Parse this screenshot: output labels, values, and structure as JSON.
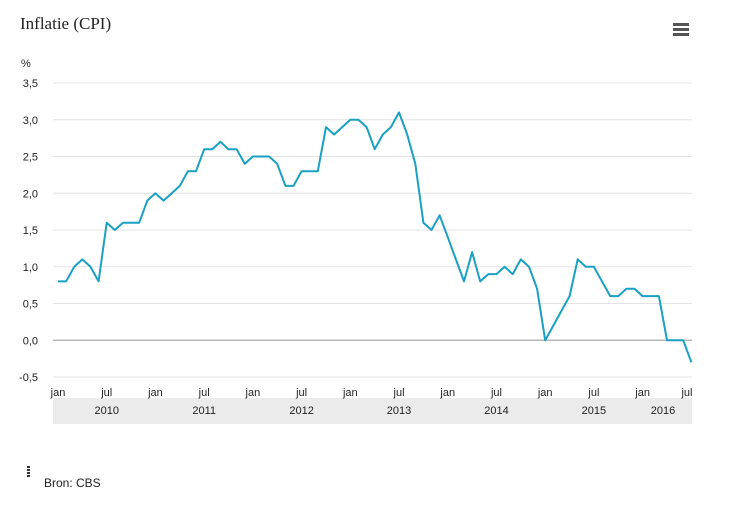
{
  "title": "Inflatie (CPI)",
  "source": "Bron: CBS",
  "icons": {
    "menu": "hamburger-menu-icon",
    "info": "info-icon"
  },
  "colors": {
    "line": "#1aa0c2",
    "band": "#ebebeb",
    "zero": "#aaaaaa",
    "grid": "#e3e3e3"
  },
  "chart_data": {
    "type": "line",
    "title": "Inflatie (CPI)",
    "ylabel": "%",
    "ylim": [
      -0.5,
      3.5
    ],
    "yticks": [
      "3,5",
      "3,0",
      "2,5",
      "2,0",
      "1,5",
      "1,0",
      "0,5",
      "0,0",
      "-0,5"
    ],
    "ytick_values": [
      3.5,
      3.0,
      2.5,
      2.0,
      1.5,
      1.0,
      0.5,
      0.0,
      -0.5
    ],
    "grid": true,
    "x_month_ticks": [
      "jan",
      "jul",
      "jan",
      "jul",
      "jan",
      "jul",
      "jan",
      "jul",
      "jan",
      "jul",
      "jan",
      "jul",
      "jan",
      "jul"
    ],
    "x_year_labels": [
      "2010",
      "2011",
      "2012",
      "2013",
      "2014",
      "2015",
      "2016"
    ],
    "x": [
      "2010-01",
      "2010-02",
      "2010-03",
      "2010-04",
      "2010-05",
      "2010-06",
      "2010-07",
      "2010-08",
      "2010-09",
      "2010-10",
      "2010-11",
      "2010-12",
      "2011-01",
      "2011-02",
      "2011-03",
      "2011-04",
      "2011-05",
      "2011-06",
      "2011-07",
      "2011-08",
      "2011-09",
      "2011-10",
      "2011-11",
      "2011-12",
      "2012-01",
      "2012-02",
      "2012-03",
      "2012-04",
      "2012-05",
      "2012-06",
      "2012-07",
      "2012-08",
      "2012-09",
      "2012-10",
      "2012-11",
      "2012-12",
      "2013-01",
      "2013-02",
      "2013-03",
      "2013-04",
      "2013-05",
      "2013-06",
      "2013-07",
      "2013-08",
      "2013-09",
      "2013-10",
      "2013-11",
      "2013-12",
      "2014-01",
      "2014-02",
      "2014-03",
      "2014-04",
      "2014-05",
      "2014-06",
      "2014-07",
      "2014-08",
      "2014-09",
      "2014-10",
      "2014-11",
      "2014-12",
      "2015-01",
      "2015-02",
      "2015-03",
      "2015-04",
      "2015-05",
      "2015-06",
      "2015-07",
      "2015-08",
      "2015-09",
      "2015-10",
      "2015-11",
      "2015-12",
      "2016-01",
      "2016-02",
      "2016-03",
      "2016-04",
      "2016-05",
      "2016-06",
      "2016-07"
    ],
    "values": [
      0.8,
      0.8,
      1.0,
      1.1,
      1.0,
      0.8,
      1.6,
      1.5,
      1.6,
      1.6,
      1.6,
      1.9,
      2.0,
      1.9,
      2.0,
      2.1,
      2.3,
      2.3,
      2.6,
      2.6,
      2.7,
      2.6,
      2.6,
      2.4,
      2.5,
      2.5,
      2.5,
      2.4,
      2.1,
      2.1,
      2.3,
      2.3,
      2.3,
      2.9,
      2.8,
      2.9,
      3.0,
      3.0,
      2.9,
      2.6,
      2.8,
      2.9,
      3.1,
      2.8,
      2.4,
      1.6,
      1.5,
      1.7,
      1.4,
      1.1,
      0.8,
      1.2,
      0.8,
      0.9,
      0.9,
      1.0,
      0.9,
      1.1,
      1.0,
      0.7,
      0.0,
      0.2,
      0.4,
      0.6,
      1.1,
      1.0,
      1.0,
      0.8,
      0.6,
      0.6,
      0.7,
      0.7,
      0.6,
      0.6,
      0.6,
      0.0,
      0.0,
      0.0,
      -0.3
    ]
  }
}
